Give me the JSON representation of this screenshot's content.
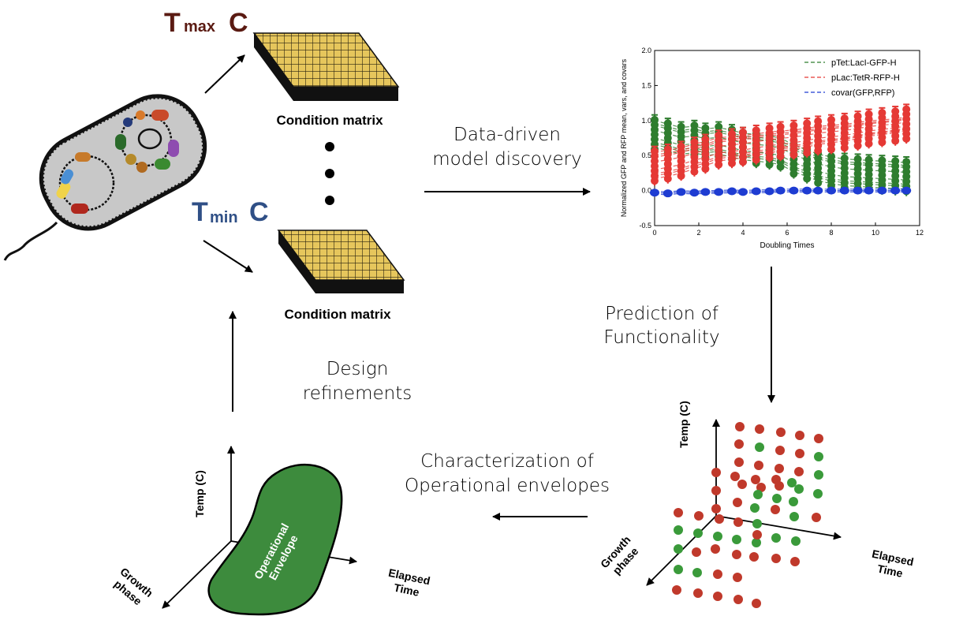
{
  "labels": {
    "t_max": "T",
    "t_max_sub": "max",
    "t_max_unit": "C",
    "t_min": "T",
    "t_min_sub": "min",
    "t_min_unit": "C",
    "condition_matrix_top": "Condition matrix",
    "condition_matrix_bottom": "Condition matrix",
    "data_driven_1": "Data-driven",
    "data_driven_2": "model discovery",
    "prediction_1": "Prediction of",
    "prediction_2": "Functionality",
    "design_1": "Design",
    "design_2": "refinements",
    "characterization_1": "Characterization of",
    "characterization_2": "Operational envelopes",
    "temp_axis_left": "Temp (C)",
    "growth_left_1": "Growth",
    "growth_left_2": "phase",
    "elapsed_left_1": "Elapsed",
    "elapsed_left_2": "Time",
    "envelope_1": "Operational",
    "envelope_2": "Envelope",
    "temp_axis_right": "Temp (C)",
    "growth_right_1": "Growth",
    "growth_right_2": "phase",
    "elapsed_right_1": "Elapsed",
    "elapsed_right_2": "Time"
  },
  "colors": {
    "t_max": "#5a1a12",
    "t_min": "#2f4f86",
    "matrix": "#e6c65c",
    "envelope": "#3d8b3d",
    "red_dot": "#c0392b",
    "green_dot": "#3a9a3a"
  },
  "chart_data": {
    "type": "line",
    "x": [
      0,
      0.6,
      1.2,
      1.8,
      2.3,
      2.9,
      3.5,
      4.0,
      4.6,
      5.2,
      5.7,
      6.3,
      6.9,
      7.4,
      8.0,
      8.6,
      9.2,
      9.7,
      10.3,
      10.9,
      11.4
    ],
    "series": [
      {
        "name": "pTet:LacI-GFP-H",
        "color": "#2e7d2e",
        "values": [
          0.8,
          0.75,
          0.7,
          0.72,
          0.68,
          0.7,
          0.66,
          0.62,
          0.6,
          0.58,
          0.55,
          0.45,
          0.38,
          0.32,
          0.28,
          0.25,
          0.24,
          0.23,
          0.22,
          0.21,
          0.2
        ]
      },
      {
        "name": "pLac:TetR-RFP-H",
        "color": "#e53935",
        "values": [
          0.35,
          0.38,
          0.42,
          0.48,
          0.52,
          0.58,
          0.6,
          0.62,
          0.65,
          0.68,
          0.7,
          0.72,
          0.75,
          0.78,
          0.8,
          0.82,
          0.85,
          0.88,
          0.9,
          0.92,
          0.95
        ]
      },
      {
        "name": "covar(GFP,RFP)",
        "color": "#1e3cd2",
        "values": [
          -0.03,
          -0.04,
          -0.02,
          -0.03,
          -0.02,
          -0.02,
          -0.01,
          -0.02,
          -0.01,
          -0.01,
          0.0,
          0.0,
          0.0,
          0.0,
          0.0,
          0.0,
          0.0,
          0.0,
          0.0,
          0.0,
          0.0
        ]
      }
    ],
    "xlabel": "Doubling Times",
    "ylabel": "Normalized GFP and RFP mean, vars, and covars",
    "xlim": [
      0,
      12
    ],
    "ylim": [
      -0.5,
      2.0
    ],
    "xticks": [
      "0",
      "2",
      "4",
      "6",
      "8",
      "10",
      "12"
    ],
    "yticks": [
      "-0.5",
      "0.0",
      "0.5",
      "1.0",
      "1.5",
      "2.0"
    ],
    "legend": "top-right"
  }
}
